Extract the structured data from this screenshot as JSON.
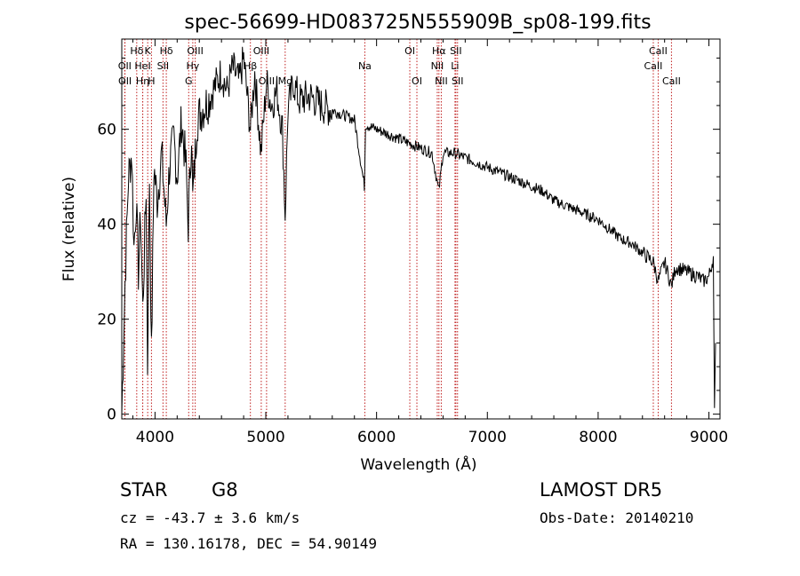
{
  "chart_data": {
    "type": "line",
    "title": "spec-56699-HD083725N555909B_sp08-199.fits",
    "xlabel": "Wavelength (Å)",
    "ylabel": "Flux (relative)",
    "xlim": [
      3700,
      9100
    ],
    "ylim": [
      -1,
      79
    ],
    "xticks": [
      4000,
      5000,
      6000,
      7000,
      8000,
      9000
    ],
    "yticks": [
      0,
      20,
      40,
      60
    ],
    "grid": false,
    "legend": "none",
    "line_color": "#000000",
    "marker_color": "#c02020",
    "spectrum": {
      "name": "",
      "x": [
        3700,
        3730,
        3760,
        3790,
        3810,
        3830,
        3850,
        3870,
        3890,
        3920,
        3933,
        3950,
        3968,
        3990,
        4020,
        4060,
        4101,
        4130,
        4170,
        4200,
        4240,
        4280,
        4300,
        4330,
        4340,
        4380,
        4420,
        4480,
        4540,
        4600,
        4650,
        4700,
        4760,
        4800,
        4861,
        4900,
        4957,
        5007,
        5050,
        5100,
        5150,
        5175,
        5200,
        5250,
        5300,
        5400,
        5500,
        5600,
        5700,
        5800,
        5890,
        5900,
        6000,
        6100,
        6200,
        6300,
        6400,
        6500,
        6562,
        6600,
        6700,
        6800,
        6900,
        7000,
        7100,
        7200,
        7300,
        7400,
        7500,
        7600,
        7700,
        7800,
        7900,
        8000,
        8100,
        8200,
        8300,
        8400,
        8498,
        8542,
        8600,
        8662,
        8700,
        8800,
        8900,
        8950,
        9000,
        9040,
        9050,
        9060
      ],
      "y": [
        0,
        28,
        50,
        55,
        35,
        45,
        30,
        42,
        22,
        48,
        10,
        50,
        12,
        52,
        45,
        55,
        40,
        52,
        58,
        50,
        62,
        52,
        40,
        60,
        45,
        62,
        64,
        66,
        69,
        72,
        68,
        73,
        70,
        75,
        60,
        72,
        55,
        70,
        65,
        68,
        60,
        42,
        64,
        70,
        66,
        67,
        65,
        64,
        63,
        62,
        48,
        61,
        60,
        59,
        58,
        57,
        56,
        55,
        47,
        55,
        55,
        54,
        53,
        52,
        51,
        50,
        49,
        48,
        47,
        45,
        44,
        43,
        42,
        41,
        39,
        37,
        36,
        34,
        32,
        28,
        32,
        27,
        31,
        30,
        29,
        28,
        29,
        33,
        0,
        15
      ]
    },
    "lines": [
      {
        "label": "Hδ",
        "wavelength": 3835,
        "row": 0
      },
      {
        "label": "OII",
        "wavelength": 3727,
        "row": 1
      },
      {
        "label": "OII",
        "wavelength": 3729,
        "row": 2
      },
      {
        "label": "Hη",
        "wavelength": 3889,
        "row": 2
      },
      {
        "label": "HeI",
        "wavelength": 3889,
        "row": 1
      },
      {
        "label": "K",
        "wavelength": 3934,
        "row": 0
      },
      {
        "label": "H",
        "wavelength": 3968,
        "row": 2
      },
      {
        "label": "SII",
        "wavelength": 4072,
        "row": 1
      },
      {
        "label": "Hδ",
        "wavelength": 4102,
        "row": 0
      },
      {
        "label": "OIII",
        "wavelength": 4363,
        "row": 0
      },
      {
        "label": "Hγ",
        "wavelength": 4341,
        "row": 1
      },
      {
        "label": "G",
        "wavelength": 4304,
        "row": 2
      },
      {
        "label": "OIII",
        "wavelength": 4959,
        "row": 0
      },
      {
        "label": "Hβ",
        "wavelength": 4861,
        "row": 1
      },
      {
        "label": "OIII",
        "wavelength": 5007,
        "row": 2
      },
      {
        "label": "Mg",
        "wavelength": 5175,
        "row": 2
      },
      {
        "label": "Na",
        "wavelength": 5894,
        "row": 1
      },
      {
        "label": "OI",
        "wavelength": 6300,
        "row": 0
      },
      {
        "label": "OI",
        "wavelength": 6364,
        "row": 2
      },
      {
        "label": "Hα",
        "wavelength": 6563,
        "row": 0
      },
      {
        "label": "NII",
        "wavelength": 6548,
        "row": 1
      },
      {
        "label": "NII",
        "wavelength": 6584,
        "row": 2
      },
      {
        "label": "SII",
        "wavelength": 6716,
        "row": 0
      },
      {
        "label": "Li",
        "wavelength": 6708,
        "row": 1
      },
      {
        "label": "SII",
        "wavelength": 6731,
        "row": 2
      },
      {
        "label": "CaII",
        "wavelength": 8542,
        "row": 0
      },
      {
        "label": "CaII",
        "wavelength": 8498,
        "row": 1
      },
      {
        "label": "CaII",
        "wavelength": 8662,
        "row": 2
      }
    ]
  },
  "info": {
    "type_label": "STAR",
    "subclass": "G8",
    "survey": "LAMOST DR5",
    "cz": "cz = -43.7 ± 3.6 km/s",
    "obs_date": "Obs-Date: 20140210",
    "coords": "RA = 130.16178, DEC =  54.90149"
  }
}
